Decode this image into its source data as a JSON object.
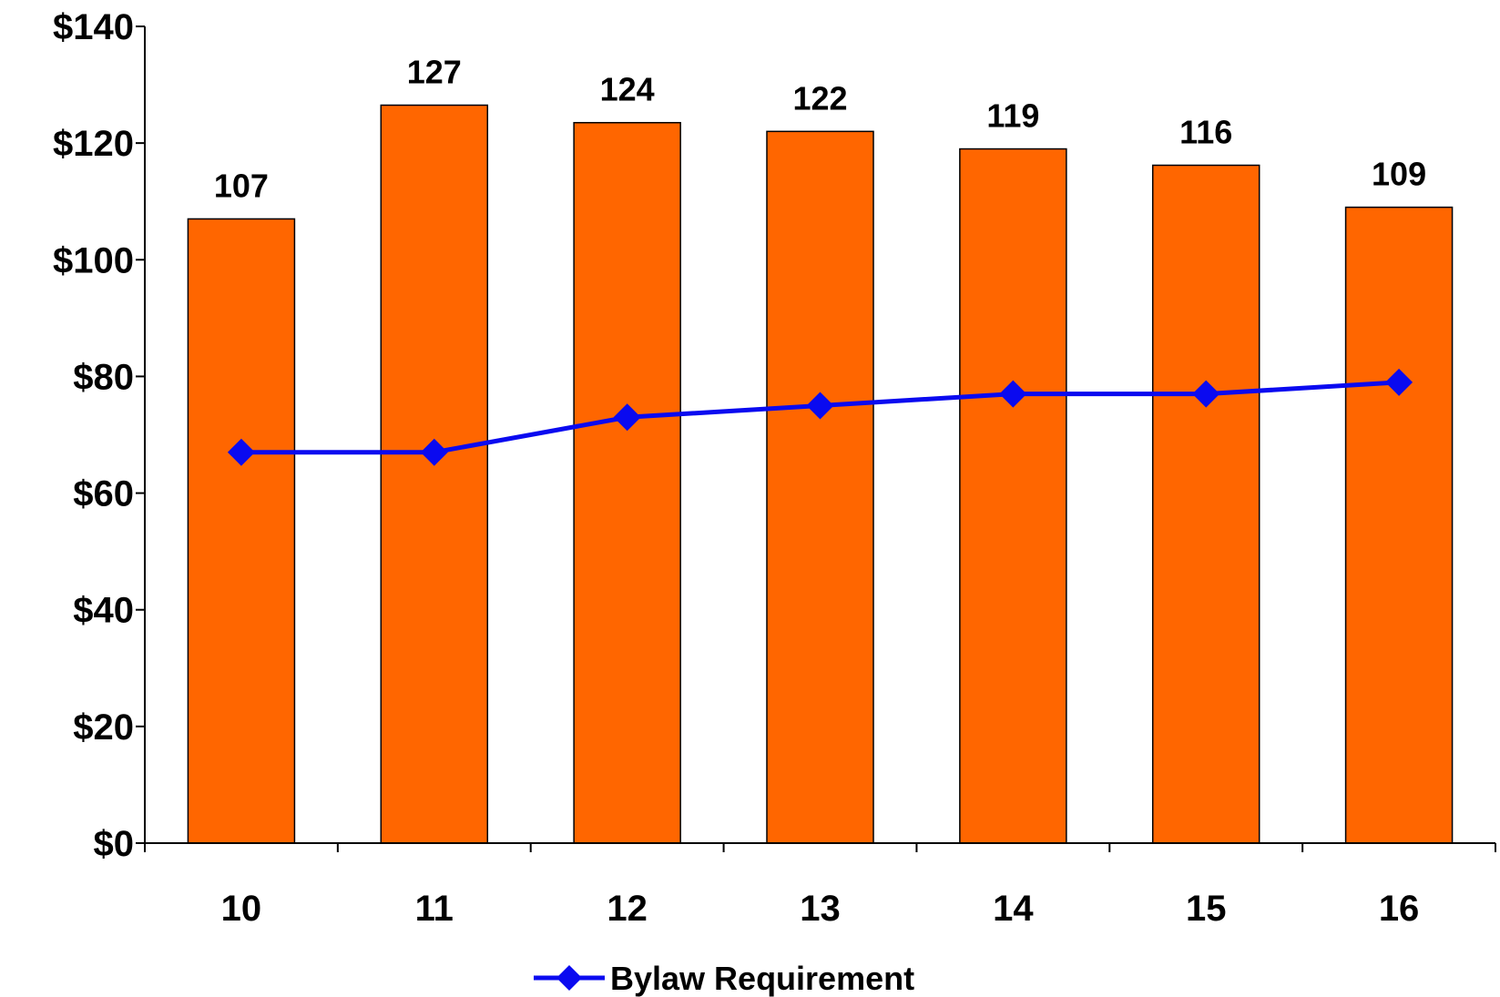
{
  "chart_data": {
    "type": "bar",
    "categories": [
      "10",
      "11",
      "12",
      "13",
      "14",
      "15",
      "16"
    ],
    "bar_values": [
      107,
      126.5,
      123.5,
      122,
      119,
      116.2,
      109
    ],
    "bar_labels": [
      "107",
      "127",
      "124",
      "122",
      "119",
      "116",
      "109"
    ],
    "series": [
      {
        "name": "Bylaw Requirement",
        "type": "line",
        "values": [
          67,
          67,
          73,
          75,
          77,
          77,
          79
        ]
      }
    ],
    "y_ticks": [
      "$0",
      "$20",
      "$40",
      "$60",
      "$80",
      "$100",
      "$120",
      "$140"
    ],
    "ylim": [
      0,
      140
    ],
    "grid": false,
    "legend_position": "bottom",
    "colors": {
      "bar": "#FF6600",
      "bar_edge": "#000000",
      "line": "#0A0AF0"
    }
  }
}
